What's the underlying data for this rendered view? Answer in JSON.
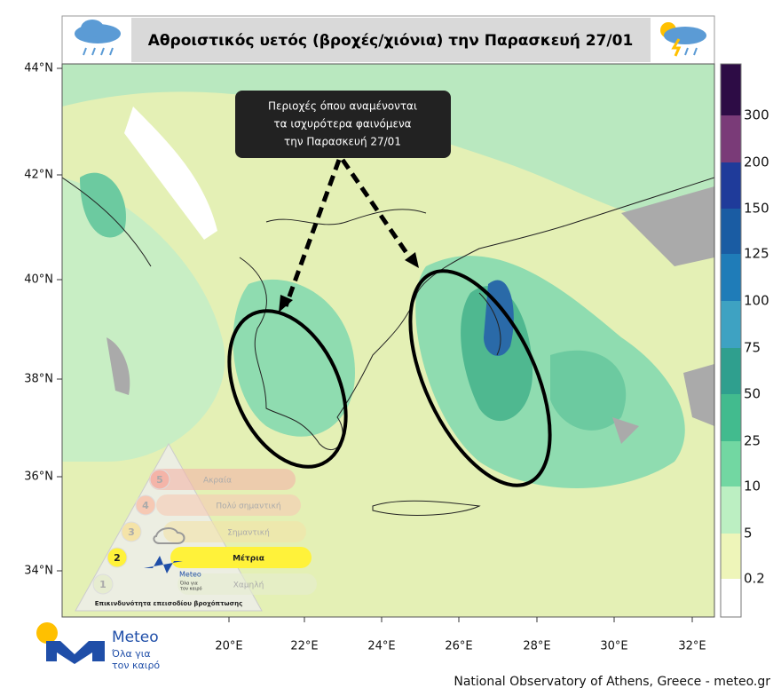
{
  "header": {
    "title": "Αθροιστικός υετός (βροχές/χιόνια) την Παρασκευή 27/01"
  },
  "annotation": {
    "lines": [
      "Περιοχές όπου αναμένονται",
      "τα ισχυρότερα φαινόμενα",
      "την Παρασκευή  27/01"
    ]
  },
  "map": {
    "lat_labels": [
      "44°N",
      "42°N",
      "40°N",
      "38°N",
      "36°N",
      "34°N"
    ],
    "lon_labels": [
      "20°E",
      "22°E",
      "24°E",
      "26°E",
      "28°E",
      "30°E",
      "32°E"
    ]
  },
  "colorbar": {
    "labels": [
      "300",
      "200",
      "150",
      "125",
      "100",
      "75",
      "50",
      "25",
      "10",
      "5",
      "0.2"
    ]
  },
  "risk_scale": {
    "levels": [
      {
        "number": "5",
        "label": "Ακραία"
      },
      {
        "number": "4",
        "label": "Πολύ σημαντική"
      },
      {
        "number": "3",
        "label": "Σημαντική"
      },
      {
        "number": "2",
        "label": "Μέτρια"
      },
      {
        "number": "1",
        "label": "Χαμηλή"
      }
    ],
    "logo": "Meteo",
    "logo_tagline": [
      "Όλα για",
      "τον καιρό"
    ],
    "caption": "Επικινδυνότητα επεισοδίου βροχόπτωσης"
  },
  "logo": {
    "name": "Meteo",
    "tagline": [
      "Όλα για",
      "τον καιρό"
    ]
  },
  "footer": "National Observatory of Athens, Greece - meteo.gr"
}
